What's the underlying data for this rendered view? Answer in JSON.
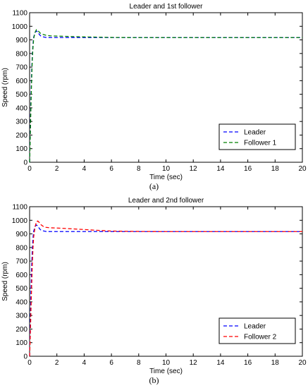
{
  "chart_data": [
    {
      "type": "line",
      "title": "Leader and 1st follower",
      "xlabel": "Time (sec)",
      "ylabel": "Speed (rpm)",
      "xlim": [
        0,
        20
      ],
      "ylim": [
        0,
        1100
      ],
      "xticks": [
        0,
        2,
        4,
        6,
        8,
        10,
        12,
        14,
        16,
        18,
        20
      ],
      "yticks": [
        0,
        100,
        200,
        300,
        400,
        500,
        600,
        700,
        800,
        900,
        1000,
        1100
      ],
      "grid": false,
      "legend_position": "lower-right",
      "caption": "(a)",
      "series": [
        {
          "name": "Leader",
          "color": "#0000ff",
          "linestyle": "dashed",
          "x": [
            0,
            0.05,
            0.1,
            0.15,
            0.2,
            0.25,
            0.3,
            0.4,
            0.5,
            0.6,
            0.7,
            0.8,
            1.0,
            1.2,
            1.5,
            2.0,
            3.0,
            4.0,
            5.0,
            6.0,
            8.0,
            10.0,
            15.0,
            20.0
          ],
          "y": [
            0,
            250,
            480,
            660,
            790,
            870,
            920,
            955,
            965,
            958,
            942,
            930,
            922,
            918,
            917,
            917,
            917,
            917,
            917,
            917,
            917,
            917,
            917,
            917
          ]
        },
        {
          "name": "Follower 1",
          "color": "#008000",
          "linestyle": "dashed",
          "x": [
            0,
            0.05,
            0.1,
            0.15,
            0.2,
            0.25,
            0.3,
            0.4,
            0.5,
            0.6,
            0.7,
            0.8,
            1.0,
            1.2,
            1.5,
            2.0,
            3.0,
            4.0,
            5.0,
            6.0,
            8.0,
            10.0,
            15.0,
            20.0
          ],
          "y": [
            0,
            190,
            420,
            610,
            760,
            850,
            910,
            955,
            975,
            970,
            958,
            948,
            940,
            934,
            930,
            928,
            925,
            922,
            920,
            918,
            917,
            917,
            917,
            917
          ]
        }
      ]
    },
    {
      "type": "line",
      "title": "Leader and 2nd follower",
      "xlabel": "Time (sec)",
      "ylabel": "Speed (rpm)",
      "xlim": [
        0,
        20
      ],
      "ylim": [
        0,
        1100
      ],
      "xticks": [
        0,
        2,
        4,
        6,
        8,
        10,
        12,
        14,
        16,
        18,
        20
      ],
      "yticks": [
        0,
        100,
        200,
        300,
        400,
        500,
        600,
        700,
        800,
        900,
        1000,
        1100
      ],
      "grid": false,
      "legend_position": "lower-right",
      "caption": "(b)",
      "series": [
        {
          "name": "Leader",
          "color": "#0000ff",
          "linestyle": "dashed",
          "x": [
            0,
            0.05,
            0.1,
            0.15,
            0.2,
            0.25,
            0.3,
            0.4,
            0.5,
            0.6,
            0.7,
            0.8,
            1.0,
            1.2,
            1.5,
            2.0,
            3.0,
            4.0,
            5.0,
            6.0,
            8.0,
            10.0,
            15.0,
            20.0
          ],
          "y": [
            0,
            250,
            480,
            660,
            790,
            870,
            920,
            955,
            965,
            958,
            942,
            930,
            922,
            918,
            917,
            917,
            917,
            917,
            917,
            917,
            917,
            917,
            917,
            917
          ]
        },
        {
          "name": "Follower 2",
          "color": "#ff0000",
          "linestyle": "dashed",
          "x": [
            0,
            0.05,
            0.1,
            0.15,
            0.2,
            0.25,
            0.3,
            0.4,
            0.5,
            0.6,
            0.7,
            0.8,
            1.0,
            1.2,
            1.5,
            2.0,
            3.0,
            4.0,
            5.0,
            6.0,
            7.0,
            8.0,
            10.0,
            15.0,
            20.0
          ],
          "y": [
            0,
            150,
            340,
            520,
            680,
            800,
            880,
            950,
            990,
            995,
            985,
            970,
            955,
            948,
            945,
            943,
            938,
            932,
            926,
            921,
            919,
            918,
            917,
            917,
            917
          ]
        }
      ]
    }
  ]
}
